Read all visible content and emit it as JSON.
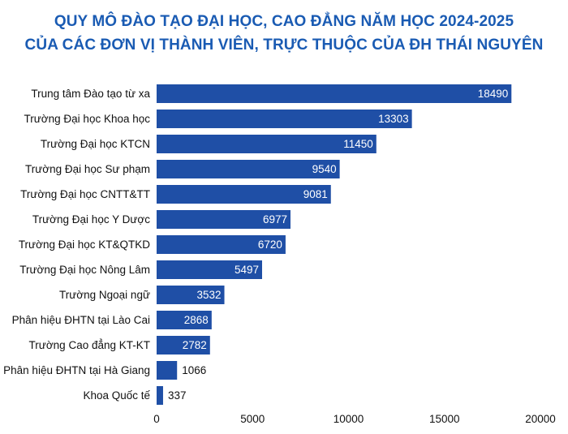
{
  "chart_data": {
    "type": "bar",
    "orientation": "horizontal",
    "title": "QUY MÔ ĐÀO TẠO ĐẠI HỌC, CAO ĐẲNG NĂM HỌC 2024-2025",
    "subtitle": "CỦA CÁC ĐƠN VỊ THÀNH VIÊN, TRỰC THUỘC CỦA ĐH THÁI NGUYÊN",
    "categories": [
      "Trung tâm Đào tạo từ xa",
      "Trường Đại học Khoa học",
      "Trường Đại học KTCN",
      "Trường Đại học Sư phạm",
      "Trường Đại học CNTT&TT",
      "Trường Đại học Y Dược",
      "Trường Đại học KT&QTKD",
      "Trường Đại học Nông Lâm",
      "Trường Ngoại ngữ",
      "Phân hiệu ĐHTN tại Lào Cai",
      "Trường Cao đẳng KT-KT",
      "Phân hiệu ĐHTN tại Hà Giang",
      "Khoa Quốc tế"
    ],
    "values": [
      18490,
      13303,
      11450,
      9540,
      9081,
      6977,
      6720,
      5497,
      3532,
      2868,
      2782,
      1066,
      337
    ],
    "xlim": [
      0,
      20000
    ],
    "xticks": [
      "0",
      "5000",
      "10000",
      "15000",
      "20000"
    ],
    "xlabel": "",
    "ylabel": "",
    "grid": false,
    "legend": "none",
    "colors": {
      "bar": "#1f4fa6",
      "title": "#1a5bb3"
    }
  }
}
